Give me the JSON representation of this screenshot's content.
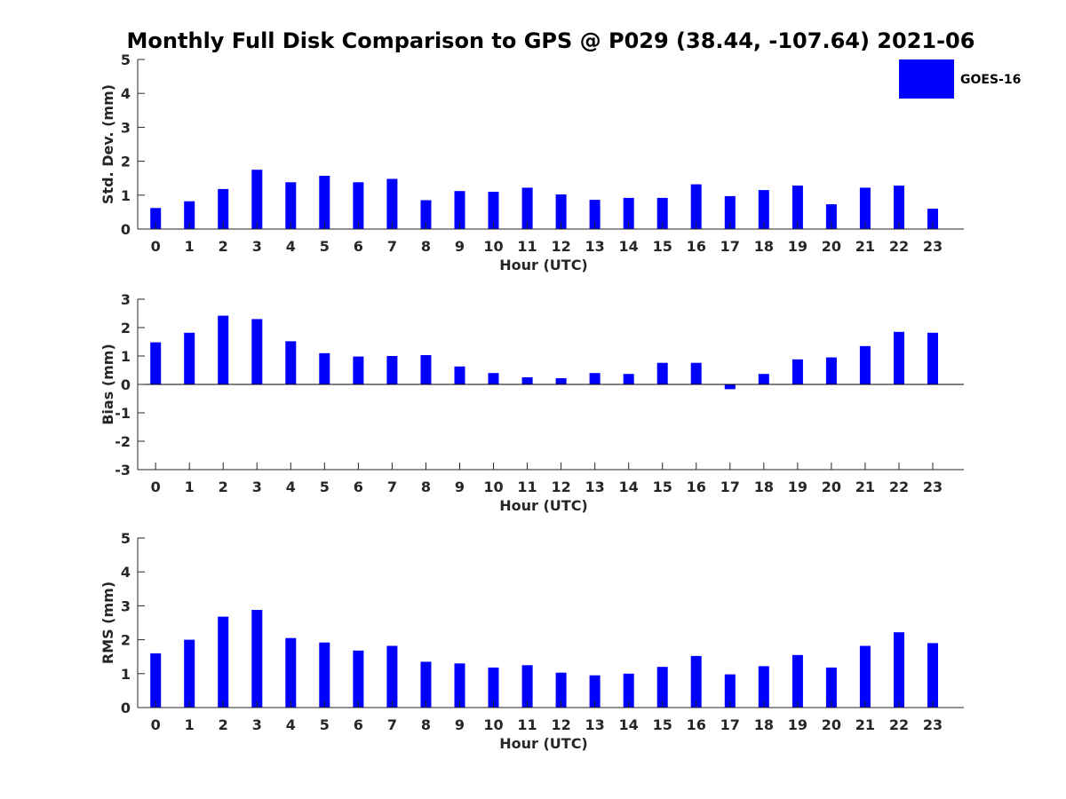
{
  "chart_data": {
    "type": "bar",
    "title": "Monthly Full Disk Comparison to GPS @ P029 (38.44, -107.64) 2021-06",
    "legend": {
      "label": "GOES-16",
      "color": "#0000ff",
      "placement": "top-right"
    },
    "categories": [
      "0",
      "1",
      "2",
      "3",
      "4",
      "5",
      "6",
      "7",
      "8",
      "9",
      "10",
      "11",
      "12",
      "13",
      "14",
      "15",
      "16",
      "17",
      "18",
      "19",
      "20",
      "21",
      "22",
      "23"
    ],
    "panels": [
      {
        "id": "stddev",
        "xlabel": "Hour (UTC)",
        "ylabel": "Std. Dev. (mm)",
        "ylim": [
          0,
          5
        ],
        "yticks": [
          0,
          1,
          2,
          3,
          4,
          5
        ],
        "series": [
          {
            "name": "GOES-16",
            "values": [
              0.62,
              0.82,
              1.18,
              1.75,
              1.38,
              1.57,
              1.38,
              1.48,
              0.85,
              1.12,
              1.1,
              1.22,
              1.02,
              0.86,
              0.92,
              0.92,
              1.32,
              0.97,
              1.15,
              1.28,
              0.73,
              1.22,
              1.28,
              0.6
            ]
          }
        ]
      },
      {
        "id": "bias",
        "xlabel": "Hour (UTC)",
        "ylabel": "Bias (mm)",
        "ylim": [
          -3,
          3
        ],
        "yticks": [
          -3,
          -2,
          -1,
          0,
          1,
          2,
          3
        ],
        "series": [
          {
            "name": "GOES-16",
            "values": [
              1.48,
              1.82,
              2.42,
              2.3,
              1.52,
              1.1,
              0.98,
              1.0,
              1.03,
              0.63,
              0.4,
              0.25,
              0.22,
              0.4,
              0.37,
              0.76,
              0.76,
              -0.17,
              0.37,
              0.88,
              0.95,
              1.35,
              1.85,
              1.82
            ]
          }
        ]
      },
      {
        "id": "rms",
        "xlabel": "Hour (UTC)",
        "ylabel": "RMS (mm)",
        "ylim": [
          0,
          5
        ],
        "yticks": [
          0,
          1,
          2,
          3,
          4,
          5
        ],
        "series": [
          {
            "name": "GOES-16",
            "values": [
              1.6,
              2.0,
              2.68,
              2.88,
              2.05,
              1.92,
              1.68,
              1.82,
              1.35,
              1.3,
              1.18,
              1.25,
              1.03,
              0.95,
              1.0,
              1.2,
              1.52,
              0.98,
              1.22,
              1.55,
              1.18,
              1.82,
              2.22,
              1.9
            ]
          }
        ]
      }
    ]
  }
}
